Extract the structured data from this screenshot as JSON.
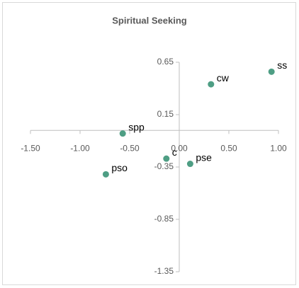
{
  "chart_data": {
    "type": "scatter",
    "title": "Spiritual Seeking",
    "series": [
      {
        "color": "#4e9e84",
        "labels": [
          "ss",
          "cw",
          "spp",
          "c",
          "pse",
          "pso"
        ],
        "x": [
          0.93,
          0.32,
          -0.57,
          -0.13,
          0.11,
          -0.74
        ],
        "values": [
          0.56,
          0.44,
          -0.03,
          -0.27,
          -0.32,
          -0.42
        ]
      }
    ],
    "xlim": [
      -1.5,
      1.0
    ],
    "xticks": [
      {
        "value": -1.5,
        "label": "-1.50"
      },
      {
        "value": -1.0,
        "label": "-1.00"
      },
      {
        "value": -0.5,
        "label": "-0.50"
      },
      {
        "value": 0,
        "label": "0.00"
      },
      {
        "value": 0.5,
        "label": "0.50"
      },
      {
        "value": 1.0,
        "label": "1.00"
      }
    ],
    "ylim": [
      -1.35,
      0.65
    ],
    "yticks": [
      0.65,
      0.15,
      -0.35,
      -0.85,
      -1.35
    ]
  }
}
